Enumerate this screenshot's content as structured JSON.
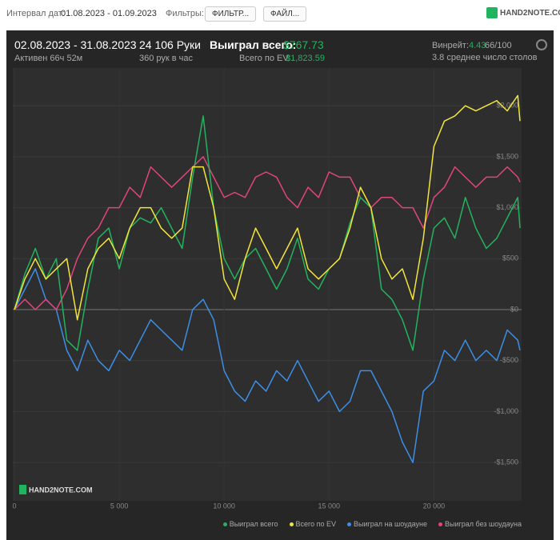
{
  "header": {
    "date_label": "Интервал дат:",
    "date_range": "01.08.2023 - 01.09.2023",
    "filters_label": "Фильтры:",
    "filter_button": "ФИЛЬТР...",
    "file_button": "ФАЙЛ...",
    "logo": "HAND2NOTE.COM"
  },
  "summary": {
    "period": "02.08.2023 - 31.08.2023",
    "active": "Активен 66ч 52м",
    "hands": "24 106 Руки",
    "hands_per_hour": "360 рук в час",
    "won_label": "Выиграл всего:",
    "won_value": "$767.73",
    "ev_label": "Всего по EV:",
    "ev_value": "$1,823.59",
    "winrate_label": "Винрейт:",
    "winrate_value": "4.43",
    "winrate_unit": "66/100",
    "tables": "3.8 среднее число столов"
  },
  "chart_data": {
    "type": "line",
    "watermark": "HAND2NOTE.COM",
    "grid": true,
    "x": [
      0,
      500,
      1000,
      1500,
      2000,
      2500,
      3000,
      3500,
      4000,
      4500,
      5000,
      5500,
      6000,
      6500,
      7000,
      7500,
      8000,
      8500,
      9000,
      9500,
      10000,
      10500,
      11000,
      11500,
      12000,
      12500,
      13000,
      13500,
      14000,
      14500,
      15000,
      15500,
      16000,
      16500,
      17000,
      17500,
      18000,
      18500,
      19000,
      19500,
      20000,
      20500,
      21000,
      21500,
      22000,
      22500,
      23000,
      23500,
      24000,
      24106
    ],
    "xlim": [
      0,
      24106
    ],
    "xticks": [
      0,
      {
        "value": 5000,
        "label": "5 000"
      },
      {
        "value": 10000,
        "label": "10 000"
      },
      {
        "value": 15000,
        "label": "15 000"
      },
      {
        "value": 20000,
        "label": "20 000"
      }
    ],
    "ylim": [
      -1880,
      2350
    ],
    "yticks": [
      {
        "value": -1500,
        "label": "-$1,500"
      },
      {
        "value": -1000,
        "label": "-$1,000"
      },
      {
        "value": -500,
        "label": "-$500"
      },
      {
        "value": 0,
        "label": "$0"
      },
      {
        "value": 500,
        "label": "$500"
      },
      {
        "value": 1000,
        "label": "$1,000"
      },
      {
        "value": 1500,
        "label": "$1,500"
      },
      {
        "value": 2000,
        "label": "$2,000"
      }
    ],
    "series": [
      {
        "name": "Выиграл всего",
        "color": "#22b35e",
        "values": [
          0,
          350,
          600,
          300,
          500,
          -300,
          -400,
          200,
          700,
          800,
          400,
          800,
          900,
          850,
          1000,
          800,
          600,
          1300,
          1900,
          1000,
          500,
          300,
          500,
          600,
          400,
          200,
          400,
          700,
          300,
          200,
          400,
          500,
          850,
          1100,
          1000,
          200,
          100,
          -100,
          -400,
          300,
          800,
          900,
          700,
          1100,
          800,
          600,
          700,
          900,
          1100,
          800
        ]
      },
      {
        "name": "Всего по EV",
        "color": "#f2e53a",
        "values": [
          0,
          300,
          500,
          300,
          400,
          500,
          -100,
          400,
          600,
          700,
          500,
          800,
          1000,
          1000,
          800,
          700,
          800,
          1400,
          1400,
          1000,
          300,
          100,
          500,
          800,
          600,
          400,
          600,
          800,
          400,
          300,
          400,
          500,
          800,
          1200,
          1000,
          500,
          300,
          400,
          100,
          700,
          1600,
          1850,
          1900,
          2000,
          1950,
          2000,
          2050,
          1950,
          2100,
          1850
        ]
      },
      {
        "name": "Выиграл на шоудауне",
        "color": "#3d8ee6",
        "values": [
          0,
          200,
          400,
          100,
          0,
          -400,
          -600,
          -300,
          -500,
          -600,
          -400,
          -500,
          -300,
          -100,
          -200,
          -300,
          -400,
          0,
          100,
          -100,
          -600,
          -800,
          -900,
          -700,
          -800,
          -600,
          -700,
          -500,
          -700,
          -900,
          -800,
          -1000,
          -900,
          -600,
          -600,
          -800,
          -1000,
          -1300,
          -1500,
          -800,
          -700,
          -400,
          -500,
          -300,
          -500,
          -400,
          -500,
          -200,
          -300,
          -400
        ]
      },
      {
        "name": "Выиграл без шоудауна",
        "color": "#e0457b",
        "values": [
          0,
          100,
          0,
          100,
          0,
          200,
          500,
          700,
          800,
          1000,
          1000,
          1200,
          1100,
          1400,
          1300,
          1200,
          1300,
          1400,
          1500,
          1300,
          1100,
          1150,
          1100,
          1300,
          1350,
          1300,
          1100,
          1000,
          1200,
          1100,
          1350,
          1300,
          1300,
          1100,
          1000,
          1100,
          1100,
          1000,
          1000,
          800,
          1100,
          1200,
          1400,
          1300,
          1200,
          1300,
          1300,
          1400,
          1300,
          1250
        ]
      }
    ]
  }
}
